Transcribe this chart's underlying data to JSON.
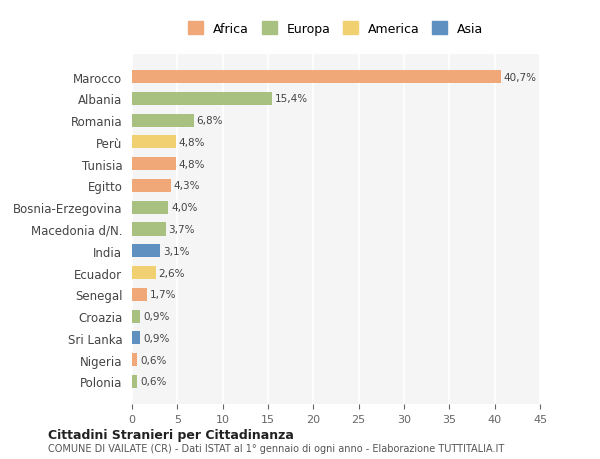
{
  "countries": [
    "Marocco",
    "Albania",
    "Romania",
    "Perù",
    "Tunisia",
    "Egitto",
    "Bosnia-Erzegovina",
    "Macedonia d/N.",
    "India",
    "Ecuador",
    "Senegal",
    "Croazia",
    "Sri Lanka",
    "Nigeria",
    "Polonia"
  ],
  "values": [
    40.7,
    15.4,
    6.8,
    4.8,
    4.8,
    4.3,
    4.0,
    3.7,
    3.1,
    2.6,
    1.7,
    0.9,
    0.9,
    0.6,
    0.6
  ],
  "labels": [
    "40,7%",
    "15,4%",
    "6,8%",
    "4,8%",
    "4,8%",
    "4,3%",
    "4,0%",
    "3,7%",
    "3,1%",
    "2,6%",
    "1,7%",
    "0,9%",
    "0,9%",
    "0,6%",
    "0,6%"
  ],
  "continent": [
    "Africa",
    "Europa",
    "Europa",
    "America",
    "Africa",
    "Africa",
    "Europa",
    "Europa",
    "Asia",
    "America",
    "Africa",
    "Europa",
    "Asia",
    "Africa",
    "Europa"
  ],
  "colors": {
    "Africa": "#F0A878",
    "Europa": "#A8C080",
    "America": "#F0D070",
    "Asia": "#6090C0"
  },
  "legend_order": [
    "Africa",
    "Europa",
    "America",
    "Asia"
  ],
  "title_bold": "Cittadini Stranieri per Cittadinanza",
  "subtitle": "COMUNE DI VAILATE (CR) - Dati ISTAT al 1° gennaio di ogni anno - Elaborazione TUTTITALIA.IT",
  "xlim": [
    0,
    45
  ],
  "xticks": [
    0,
    5,
    10,
    15,
    20,
    25,
    30,
    35,
    40,
    45
  ],
  "bg_color": "#ffffff",
  "plot_bg_color": "#f5f5f5"
}
